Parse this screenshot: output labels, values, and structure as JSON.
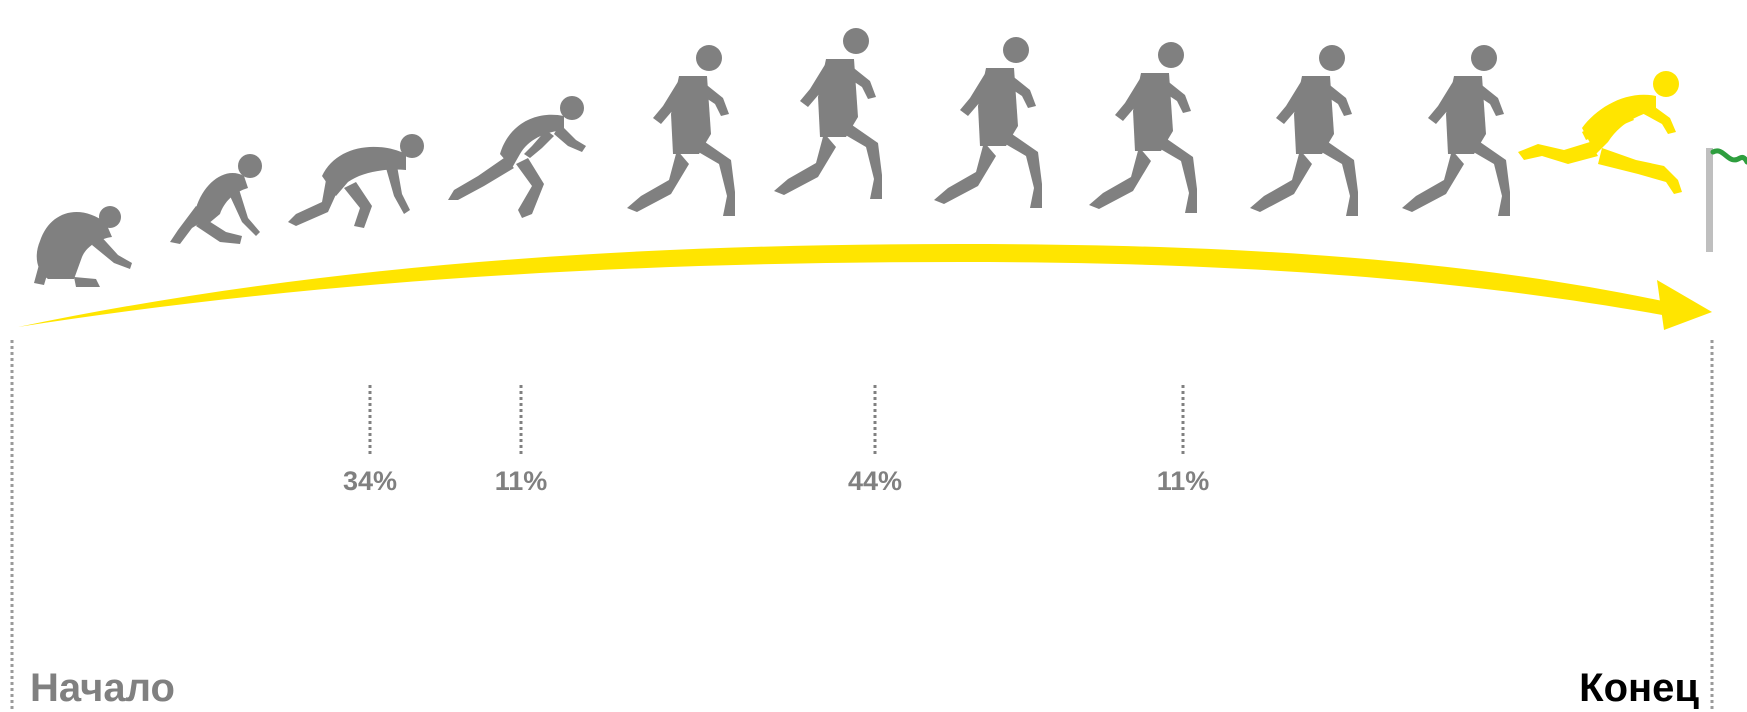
{
  "labels": {
    "start": "Начало",
    "finish": "Конец"
  },
  "colors": {
    "runner": "#808080",
    "winner": "#FFE500",
    "arrow": "#FFE500",
    "flag": "#2E9E3E",
    "pole": "#BFBFBF",
    "start_text": "#808080",
    "finish_text": "#000000",
    "marker": "#808080"
  },
  "markers": [
    {
      "label": "34%"
    },
    {
      "label": "11%"
    },
    {
      "label": "44%"
    },
    {
      "label": "11%"
    }
  ],
  "runners": [
    {
      "pose": "crouch",
      "highlight": false
    },
    {
      "pose": "kneel-set",
      "highlight": false
    },
    {
      "pose": "set",
      "highlight": false
    },
    {
      "pose": "drive",
      "highlight": false
    },
    {
      "pose": "stride",
      "highlight": false
    },
    {
      "pose": "stride",
      "highlight": false
    },
    {
      "pose": "stride",
      "highlight": false
    },
    {
      "pose": "stride",
      "highlight": false
    },
    {
      "pose": "stride",
      "highlight": false
    },
    {
      "pose": "stride",
      "highlight": false
    },
    {
      "pose": "finish",
      "highlight": true
    }
  ]
}
